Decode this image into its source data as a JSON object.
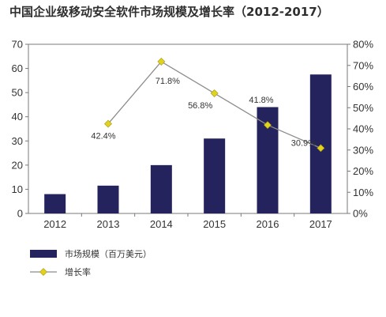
{
  "chart_data": {
    "type": "bar",
    "title": "中国企业级移动安全软件市场规模及增长率（2012-2017）",
    "categories": [
      "2012",
      "2013",
      "2014",
      "2015",
      "2016",
      "2017"
    ],
    "series": [
      {
        "name": "市场规模（百万美元）",
        "type": "bar",
        "axis": "left",
        "color": "#24235e",
        "values": [
          8,
          11.5,
          20,
          31,
          44,
          57.5
        ]
      },
      {
        "name": "增长率",
        "type": "line",
        "axis": "right",
        "color": "#e2d21c",
        "values": [
          null,
          42.4,
          71.8,
          56.8,
          41.8,
          30.9
        ],
        "labels": [
          null,
          "42.4%",
          "71.8%",
          "56.8%",
          "41.8%",
          "30.9%"
        ]
      }
    ],
    "y_left": {
      "min": 0,
      "max": 70,
      "ticks": [
        "0",
        "10",
        "20",
        "30",
        "40",
        "50",
        "60",
        "70"
      ]
    },
    "y_right": {
      "min": 0,
      "max": 80,
      "ticks": [
        "0%",
        "10%",
        "20%",
        "30%",
        "40%",
        "50%",
        "60%",
        "70%",
        "80%"
      ]
    },
    "grid": false,
    "legend_position": "bottom-left"
  }
}
